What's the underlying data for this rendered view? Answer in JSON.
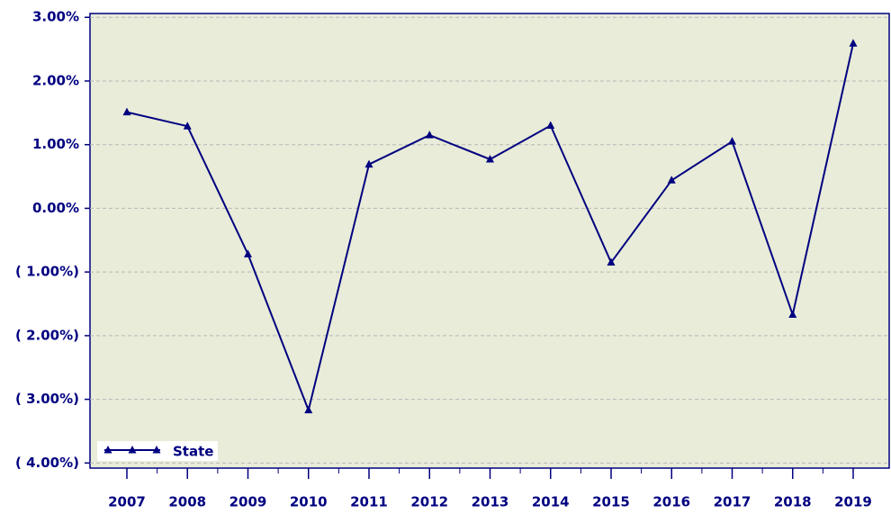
{
  "chart_data": {
    "type": "line",
    "categories": [
      "2007",
      "2008",
      "2009",
      "2010",
      "2011",
      "2012",
      "2013",
      "2014",
      "2015",
      "2016",
      "2017",
      "2018",
      "2019"
    ],
    "series": [
      {
        "name": "State",
        "color": "#000080",
        "values": [
          1.51,
          1.29,
          -0.72,
          -3.17,
          0.69,
          1.15,
          0.77,
          1.3,
          -0.85,
          0.44,
          1.05,
          -1.67,
          2.59
        ]
      }
    ],
    "ylim": [
      -4.08,
      3.06
    ],
    "yticks": [
      {
        "value": 3,
        "label": "3.00%"
      },
      {
        "value": 2,
        "label": "2.00%"
      },
      {
        "value": 1,
        "label": "1.00%"
      },
      {
        "value": 0,
        "label": "0.00%"
      },
      {
        "value": -1,
        "label": "( 1.00%)"
      },
      {
        "value": -2,
        "label": "( 2.00%)"
      },
      {
        "value": -3,
        "label": "( 3.00%)"
      },
      {
        "value": -4,
        "label": "( 4.00%)"
      }
    ],
    "grid": true,
    "legend": "lower left"
  }
}
